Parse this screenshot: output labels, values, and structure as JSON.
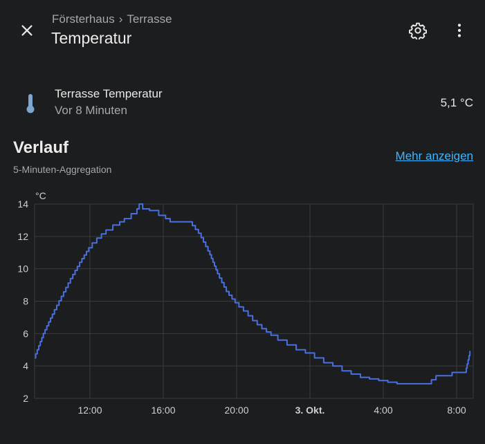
{
  "header": {
    "breadcrumb": [
      "Försterhaus",
      "Terrasse"
    ],
    "breadcrumb_separator": "›",
    "title": "Temperatur",
    "icons": [
      "close-icon",
      "gear-icon",
      "more-vertical-icon"
    ]
  },
  "entity": {
    "icon": "thermometer-icon",
    "name": "Terrasse Temperatur",
    "last_changed": "Vor 8 Minuten",
    "state": "5,1 °C"
  },
  "history": {
    "title": "Verlauf",
    "subtitle": "5-Minuten-Aggregation",
    "more_link": "Mehr anzeigen"
  },
  "colors": {
    "accent_link": "#3fb6ff",
    "series_line": "#4a6fe0",
    "icon_blue": "#7fa6cf",
    "background": "#1c1d1f"
  },
  "chart_data": {
    "type": "line",
    "ylabel": "°C",
    "ylim": [
      2,
      14
    ],
    "yticks": [
      "14",
      "12",
      "10",
      "8",
      "6",
      "4",
      "2"
    ],
    "xticks": [
      "12:00",
      "16:00",
      "20:00",
      "3. Okt.",
      "4:00",
      "8:00"
    ],
    "grid": true,
    "series": [
      {
        "x": [
          "09:00",
          "09:30",
          "10:00",
          "10:30",
          "11:00",
          "11:30",
          "12:00",
          "12:30",
          "13:00",
          "13:30",
          "14:00",
          "14:30",
          "14:45",
          "15:00",
          "15:30",
          "16:00",
          "16:30",
          "17:00",
          "17:30",
          "18:00",
          "18:30",
          "19:00",
          "19:30",
          "20:00",
          "20:30",
          "21:00",
          "21:30",
          "22:00",
          "22:30",
          "23:00",
          "23:30",
          "00:00",
          "00:30",
          "01:00",
          "01:30",
          "02:00",
          "02:30",
          "03:00",
          "03:30",
          "04:00",
          "04:30",
          "05:00",
          "05:30",
          "06:00",
          "06:30",
          "07:00",
          "07:30",
          "08:00",
          "08:30",
          "08:45"
        ],
        "values": [
          4.5,
          6.0,
          7.2,
          8.3,
          9.4,
          10.4,
          11.3,
          11.9,
          12.4,
          12.7,
          13.1,
          13.4,
          14.0,
          13.7,
          13.6,
          13.3,
          12.9,
          12.9,
          12.9,
          12.2,
          11.1,
          9.7,
          8.6,
          7.9,
          7.4,
          6.8,
          6.3,
          5.9,
          5.6,
          5.3,
          5.0,
          4.8,
          4.5,
          4.2,
          4.0,
          3.7,
          3.5,
          3.3,
          3.2,
          3.1,
          3.0,
          2.9,
          2.9,
          2.9,
          2.9,
          3.4,
          3.4,
          3.6,
          3.6,
          4.9
        ]
      }
    ]
  }
}
